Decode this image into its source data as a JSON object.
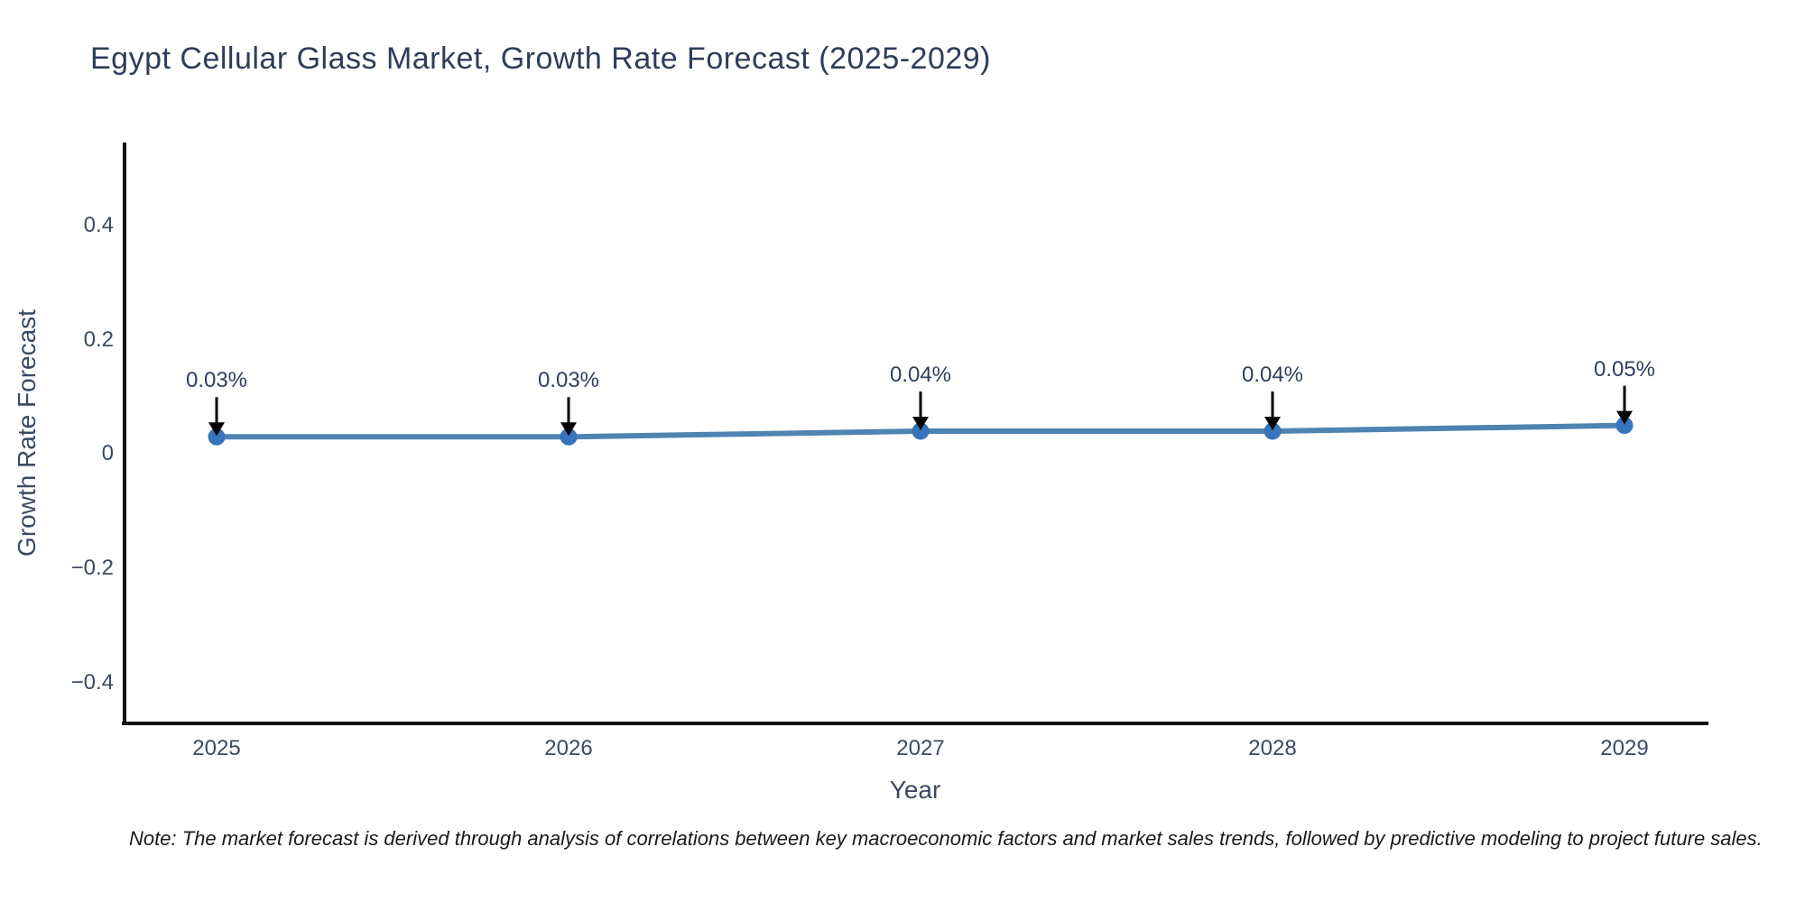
{
  "header": {
    "title": "Egypt Cellular Glass Market, Growth Rate Forecast (2025-2029)"
  },
  "footnote": {
    "text": "Note: The market forecast is derived through analysis of correlations between key macroeconomic factors and market sales trends, followed by predictive modeling to project future sales."
  },
  "colors": {
    "background": "#ffffff",
    "title_text": "#2e3d59",
    "tick_text": "#3b4a63",
    "annotation_text": "#2f3f5e",
    "axis_line": "#111111",
    "series_line": "#4f83b0",
    "marker_fill": "#3674bd",
    "arrow": "#000000",
    "note_text": "#1a1a1a"
  },
  "chart_data": {
    "type": "line",
    "title": "Egypt Cellular Glass Market, Growth Rate Forecast (2025-2029)",
    "xlabel": "Year",
    "ylabel": "Growth Rate Forecast",
    "categories": [
      "2025",
      "2026",
      "2027",
      "2028",
      "2029"
    ],
    "series": [
      {
        "name": "Growth Rate Forecast",
        "values": [
          0.03,
          0.03,
          0.04,
          0.04,
          0.05
        ],
        "point_labels": [
          "0.03%",
          "0.03%",
          "0.04%",
          "0.04%",
          "0.05%"
        ]
      }
    ],
    "yticks": {
      "labels": [
        "0.4",
        "0.2",
        "0",
        "−0.2",
        "−0.4"
      ],
      "values": [
        0.4,
        0.2,
        0,
        -0.2,
        -0.4
      ]
    },
    "ylim": [
      -0.47,
      0.55
    ],
    "grid": false,
    "legend": "none",
    "annotations": "down-arrows from data labels to points"
  }
}
